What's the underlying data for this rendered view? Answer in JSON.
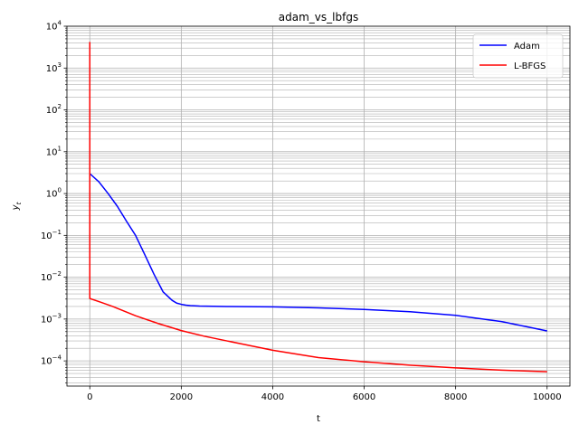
{
  "chart_data": {
    "type": "line",
    "title": "adam_vs_lbfgs",
    "xlabel": "t",
    "ylabel_main": "y",
    "ylabel_sub": "t",
    "xlim": [
      -500,
      10500
    ],
    "ylim": [
      2.5e-05,
      10000
    ],
    "yscale": "log",
    "grid": "both major and minor",
    "legend_position": "top-right",
    "x_ticks": [
      0,
      2000,
      4000,
      6000,
      8000,
      10000
    ],
    "x_tick_labels": [
      "0",
      "2000",
      "4000",
      "6000",
      "8000",
      "10000"
    ],
    "y_ticks": [
      0.0001,
      0.001,
      0.01,
      0.1,
      1,
      10,
      100,
      1000,
      10000
    ],
    "y_tick_bases": [
      "10",
      "10",
      "10",
      "10",
      "10",
      "10",
      "10",
      "10",
      "10"
    ],
    "y_tick_exps": [
      "−4",
      "−3",
      "−2",
      "−1",
      "0",
      "1",
      "2",
      "3",
      "4"
    ],
    "series": [
      {
        "name": "Adam",
        "color": "#0000ff",
        "x": [
          0,
          200,
          400,
          600,
          800,
          1000,
          1200,
          1400,
          1600,
          1800,
          1900,
          2000,
          2100,
          2200,
          2400,
          3000,
          4000,
          5000,
          6000,
          7000,
          8000,
          9000,
          10000
        ],
        "y": [
          3,
          1.9,
          1.0,
          0.5,
          0.22,
          0.1,
          0.035,
          0.012,
          0.0045,
          0.0028,
          0.0024,
          0.00225,
          0.00215,
          0.0021,
          0.00205,
          0.002,
          0.00196,
          0.00185,
          0.0017,
          0.0015,
          0.00123,
          0.00087,
          0.00052
        ]
      },
      {
        "name": "L-BFGS",
        "color": "#ff0000",
        "x": [
          0,
          0,
          0,
          250,
          500,
          1000,
          1500,
          2000,
          2500,
          3000,
          4000,
          5000,
          6000,
          7000,
          8000,
          9000,
          10000
        ],
        "y": [
          4200,
          3.2,
          0.0031,
          0.0025,
          0.002,
          0.0012,
          0.00078,
          0.00053,
          0.00039,
          0.0003,
          0.00018,
          0.00012,
          9.5e-05,
          7.9e-05,
          6.8e-05,
          6e-05,
          5.5e-05
        ]
      }
    ]
  }
}
